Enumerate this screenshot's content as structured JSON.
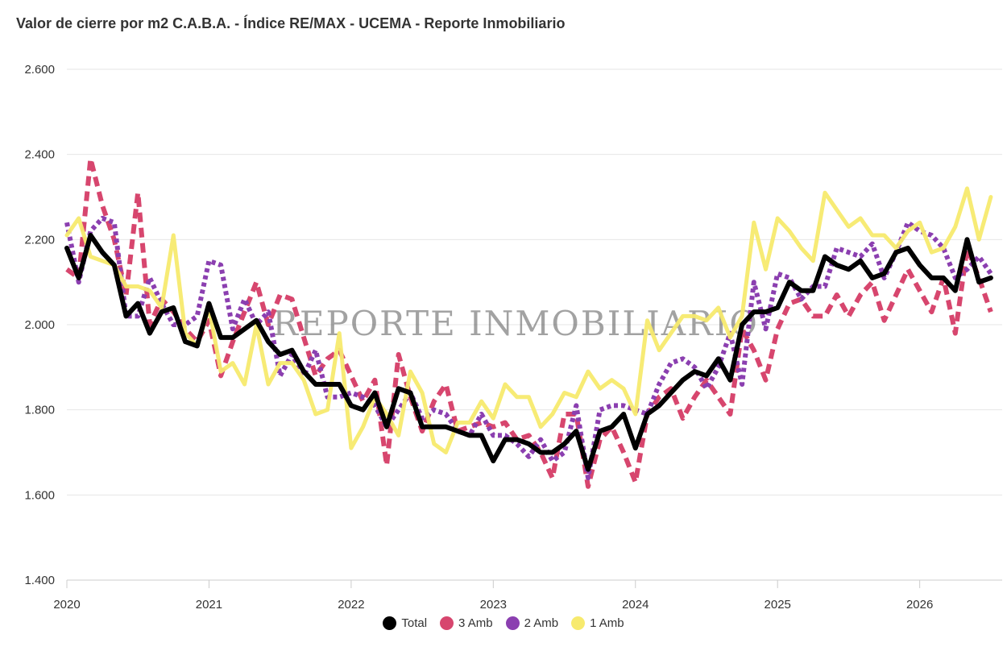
{
  "title": "Valor de cierre por m2 C.A.B.A. - Índice RE/MAX - UCEMA - Reporte Inmobiliario",
  "watermark": "REPORTE INMOBILIARIO",
  "colors": {
    "total": "#000000",
    "amb3": "#d7466e",
    "amb2": "#8b3fb0",
    "amb1": "#f7ea6e",
    "grid": "#e6e6e6",
    "axis": "#cccccc"
  },
  "chart_data": {
    "type": "line",
    "ylim": [
      1400,
      2600
    ],
    "yticks": [
      1400,
      1600,
      1800,
      2000,
      2200,
      2400,
      2600
    ],
    "ytick_labels": [
      "1.400",
      "1.600",
      "1.800",
      "2.000",
      "2.200",
      "2.400",
      "2.600"
    ],
    "xlim": [
      2020,
      2026.58
    ],
    "xticks": [
      2020,
      2021,
      2022,
      2023,
      2024,
      2025,
      2026
    ],
    "xtick_labels": [
      "2020",
      "2021",
      "2022",
      "2023",
      "2024",
      "2025",
      "2026"
    ],
    "grid": true,
    "legend_position": "bottom",
    "x_start": 2020,
    "x_step_months": 1,
    "series": [
      {
        "name": "3 Amb",
        "style": "dashed",
        "values": [
          2130,
          2110,
          2390,
          2280,
          2200,
          2070,
          2310,
          2000,
          2060,
          2030,
          1990,
          1960,
          2010,
          1880,
          1960,
          2030,
          2100,
          2000,
          2070,
          2060,
          1970,
          1880,
          1920,
          1940,
          1880,
          1820,
          1870,
          1670,
          1930,
          1830,
          1750,
          1820,
          1860,
          1750,
          1760,
          1770,
          1760,
          1770,
          1730,
          1740,
          1700,
          1640,
          1790,
          1790,
          1620,
          1730,
          1760,
          1700,
          1630,
          1790,
          1830,
          1850,
          1780,
          1830,
          1870,
          1830,
          1790,
          1990,
          1940,
          1870,
          1990,
          2050,
          2060,
          2020,
          2020,
          2070,
          2020,
          2070,
          2100,
          2010,
          2070,
          2130,
          2080,
          2030,
          2110,
          1980,
          2180,
          2110,
          2030
        ]
      },
      {
        "name": "2 Amb",
        "style": "dotted",
        "values": [
          2240,
          2100,
          2220,
          2250,
          2240,
          2020,
          2020,
          2110,
          2050,
          2000,
          2000,
          2020,
          2150,
          2140,
          1990,
          2060,
          2000,
          2030,
          1880,
          1930,
          1880,
          1940,
          1830,
          1830,
          1840,
          1830,
          1810,
          1760,
          1800,
          1840,
          1780,
          1800,
          1790,
          1750,
          1740,
          1790,
          1740,
          1740,
          1720,
          1690,
          1730,
          1680,
          1700,
          1810,
          1640,
          1800,
          1810,
          1810,
          1800,
          1790,
          1860,
          1910,
          1920,
          1900,
          1850,
          1900,
          1980,
          1860,
          2100,
          1990,
          2120,
          2110,
          2060,
          2090,
          2090,
          2180,
          2170,
          2160,
          2190,
          2110,
          2170,
          2240,
          2220,
          2210,
          2180,
          2110,
          2130,
          2160,
          2120
        ]
      },
      {
        "name": "1 Amb",
        "style": "solid",
        "values": [
          2210,
          2250,
          2160,
          2150,
          2140,
          2090,
          2090,
          2080,
          2040,
          2210,
          1980,
          1950,
          2040,
          1890,
          1910,
          1860,
          2000,
          1860,
          1910,
          1910,
          1870,
          1790,
          1800,
          1980,
          1710,
          1760,
          1830,
          1790,
          1740,
          1890,
          1840,
          1720,
          1700,
          1770,
          1770,
          1820,
          1780,
          1860,
          1830,
          1830,
          1760,
          1790,
          1840,
          1830,
          1890,
          1850,
          1870,
          1850,
          1790,
          2010,
          1940,
          1980,
          2020,
          2020,
          2010,
          2040,
          1970,
          2020,
          2240,
          2130,
          2250,
          2220,
          2180,
          2150,
          2310,
          2270,
          2230,
          2250,
          2210,
          2210,
          2180,
          2220,
          2240,
          2170,
          2180,
          2230,
          2320,
          2200,
          2300
        ]
      },
      {
        "name": "Total",
        "style": "solid-bold",
        "values": [
          2180,
          2110,
          2210,
          2170,
          2140,
          2020,
          2050,
          1980,
          2030,
          2040,
          1960,
          1950,
          2050,
          1970,
          1970,
          1990,
          2010,
          1960,
          1930,
          1940,
          1890,
          1860,
          1860,
          1860,
          1810,
          1800,
          1840,
          1760,
          1850,
          1840,
          1760,
          1760,
          1760,
          1750,
          1740,
          1740,
          1680,
          1730,
          1730,
          1720,
          1700,
          1700,
          1720,
          1750,
          1660,
          1750,
          1760,
          1790,
          1710,
          1790,
          1810,
          1840,
          1870,
          1890,
          1880,
          1920,
          1870,
          2000,
          2030,
          2030,
          2040,
          2100,
          2080,
          2080,
          2160,
          2140,
          2130,
          2150,
          2110,
          2120,
          2170,
          2180,
          2140,
          2110,
          2110,
          2080,
          2200,
          2100,
          2110
        ]
      }
    ]
  },
  "legend": [
    {
      "label": "Total",
      "color": "#000000"
    },
    {
      "label": "3 Amb",
      "color": "#d7466e"
    },
    {
      "label": "2 Amb",
      "color": "#8b3fb0"
    },
    {
      "label": "1 Amb",
      "color": "#f7ea6e"
    }
  ]
}
